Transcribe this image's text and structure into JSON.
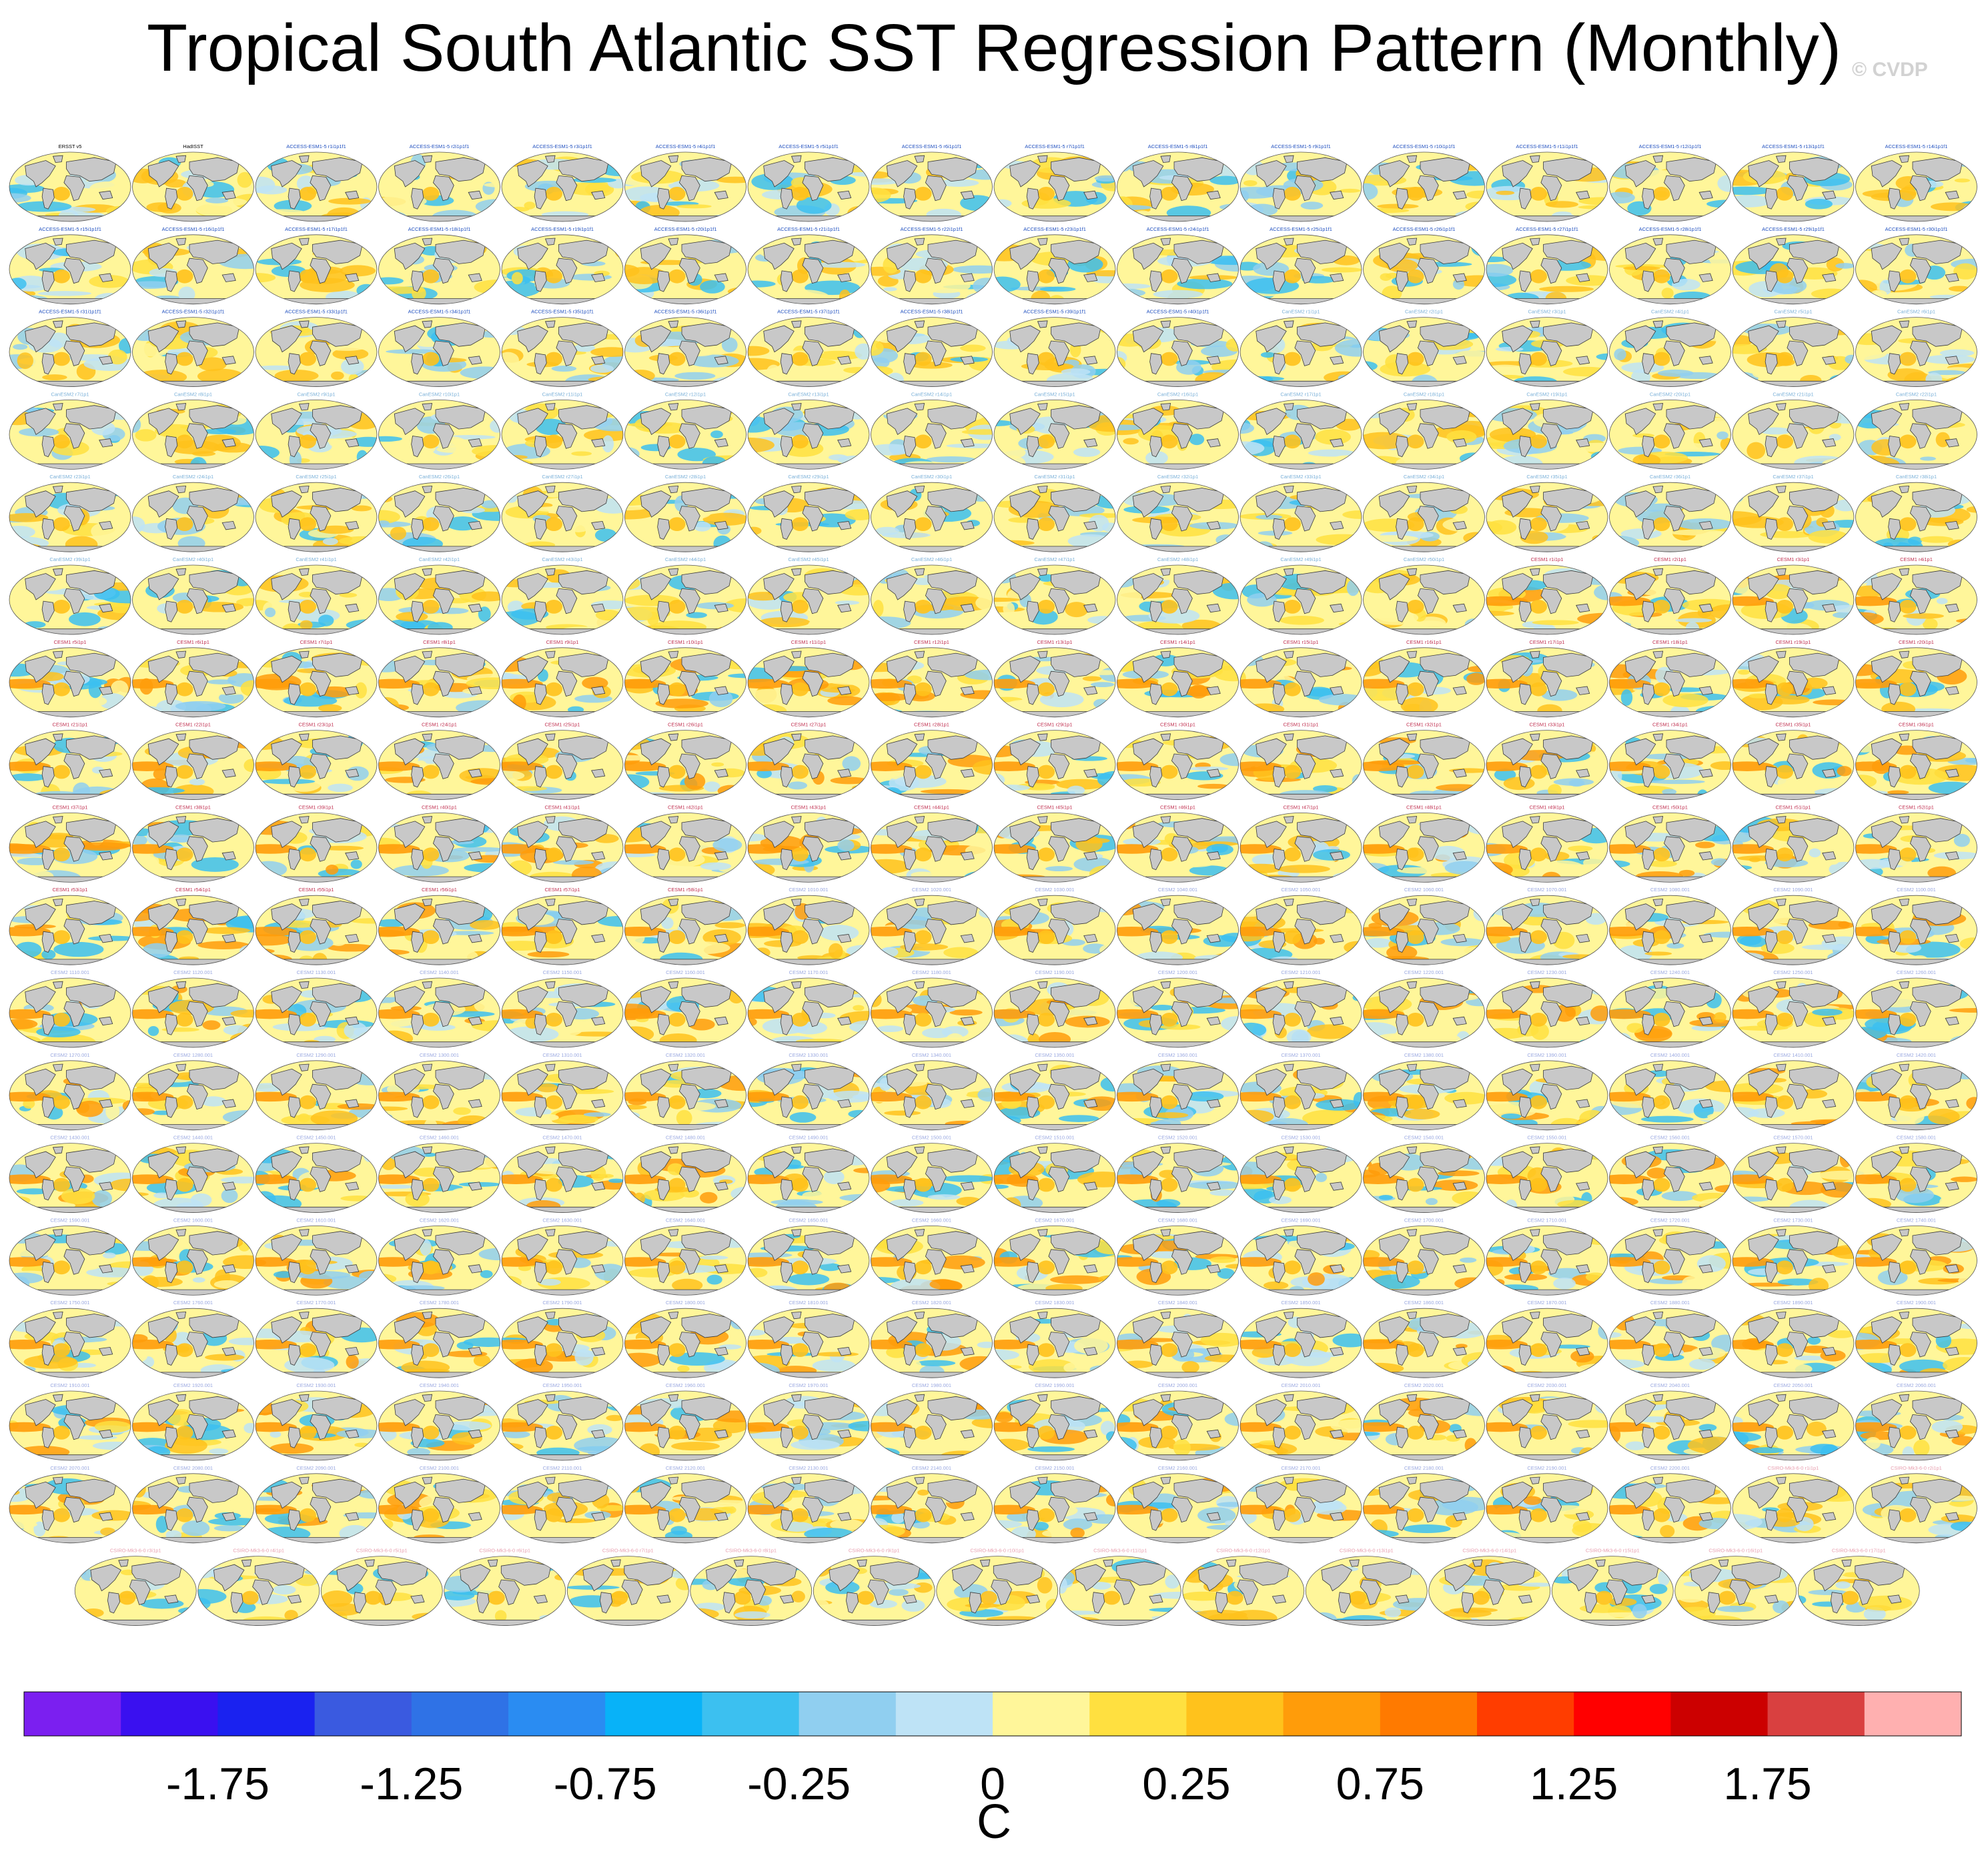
{
  "title": "Tropical South Atlantic SST Regression Pattern (Monthly)",
  "watermark": "© CVDP",
  "colors": {
    "land": "#c8c8c8",
    "coast": "#3a3a3a",
    "panel_frame": "#555555",
    "title_obs": "#000000",
    "title_access": "#1f4fbf",
    "title_canesm": "#7ab0d8",
    "title_cesm1": "#c03050",
    "title_cesm2": "#9aa8e0",
    "title_csiro": "#e8a0b0"
  },
  "panels": {
    "rows": 18,
    "columns": 16,
    "total_maps": 287,
    "obs_titles": [
      "ERSST v5",
      "HadISST"
    ],
    "ensemble_title_prefixes": [
      "ACCESS-ESM1-5",
      "CanESM2",
      "CESM1",
      "CESM2",
      "CSIRO-Mk3-6-0"
    ]
  },
  "chart_data": {
    "type": "filled-contour-map-grid",
    "title": "Tropical South Atlantic SST Regression Pattern (Monthly)",
    "units": "C",
    "colorbar": {
      "levels": [
        -2.0,
        -1.75,
        -1.5,
        -1.25,
        -1.0,
        -0.75,
        -0.5,
        -0.25,
        -0.1,
        0,
        0.1,
        0.25,
        0.5,
        0.75,
        1.0,
        1.25,
        1.5,
        1.75,
        2.0
      ],
      "tick_labels": [
        "-1.75",
        "-1.25",
        "-0.75",
        "-0.25",
        "0",
        "0.25",
        "0.75",
        "1.25",
        "1.75"
      ],
      "colors": [
        "#7b1ff0",
        "#3a10f0",
        "#1a22f0",
        "#3a5ae0",
        "#2f72e6",
        "#2a8cf2",
        "#08b2f8",
        "#3cc0f0",
        "#90cff0",
        "#bee3f6",
        "#fff69a",
        "#ffe040",
        "#ffc21c",
        "#ff9c0a",
        "#ff7a00",
        "#ff3d00",
        "#ff0000",
        "#cc0000",
        "#d94040",
        "#ffb0b0"
      ]
    }
  }
}
